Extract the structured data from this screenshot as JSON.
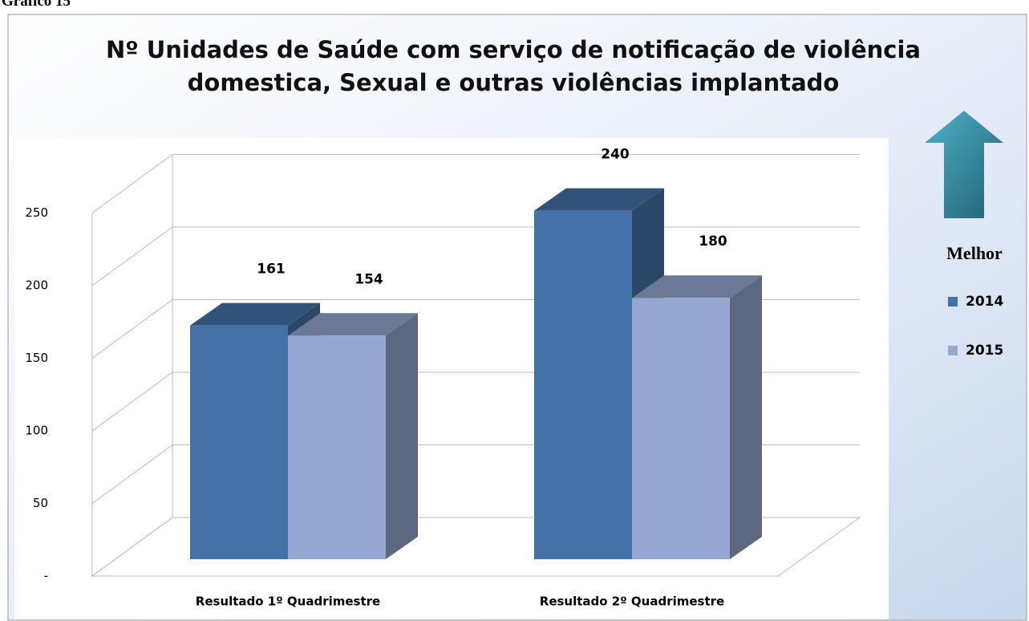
{
  "caption": "Gráfico 15",
  "chart_data": {
    "type": "bar3d",
    "title": "Nº Unidades de Saúde com serviço de notificação de violência domestica, Sexual e outras violências implantado",
    "annotation": "Melhor",
    "categories": [
      "Resultado 1º Quadrimestre",
      "Resultado 2º Quadrimestre"
    ],
    "series": [
      {
        "name": "2014",
        "color": "#4472a8",
        "values": [
          161,
          240
        ]
      },
      {
        "name": "2015",
        "color": "#95a8d2",
        "values": [
          154,
          180
        ]
      }
    ],
    "ylim": [
      0,
      250
    ],
    "yticks": [
      {
        "value": 0,
        "label": "-"
      },
      50,
      100,
      150,
      200,
      250
    ],
    "grid": true,
    "legend": "right"
  }
}
